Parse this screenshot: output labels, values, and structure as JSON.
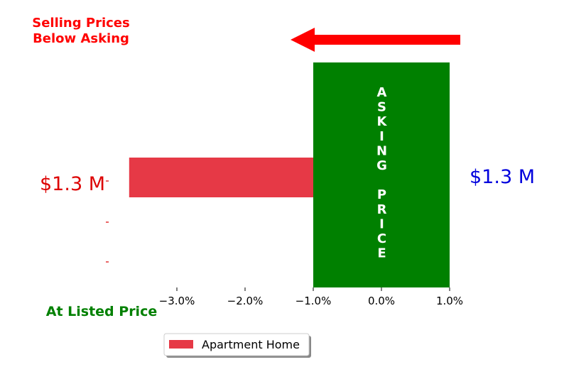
{
  "annotations": {
    "below_asking": [
      "Selling Prices",
      "Below Asking"
    ],
    "at_listed": "At Listed Price",
    "asking_price_vertical": [
      "A",
      "S",
      "K",
      "I",
      "N",
      "G",
      "",
      "P",
      "R",
      "I",
      "C",
      "E"
    ],
    "right_value": "$1.3 M"
  },
  "colors": {
    "bar": "#e63946",
    "asking_box": "#008000",
    "arrow": "#ff0000",
    "below_text": "#ff0000",
    "at_listed_text": "#008000",
    "right_value_text": "#0000dd",
    "y_tick_text": "#dd0000"
  },
  "chart_data": {
    "type": "bar",
    "orientation": "horizontal",
    "categories": [
      "$1.3 M",
      "",
      ""
    ],
    "series": [
      {
        "name": "Apartment Home",
        "values": [
          -3.7,
          null,
          null
        ]
      }
    ],
    "xlim": [
      -4.0,
      1.0
    ],
    "x_ticks": [
      -3.0,
      -2.0,
      -1.0,
      0.0,
      1.0
    ],
    "x_tick_labels": [
      "−3.0%",
      "−2.0%",
      "−1.0%",
      "0.0%",
      "1.0%"
    ],
    "asking_price_range": [
      -1.0,
      1.0
    ],
    "legend": {
      "position": "bottom-center",
      "entries": [
        "Apartment Home"
      ]
    },
    "grid": false
  }
}
